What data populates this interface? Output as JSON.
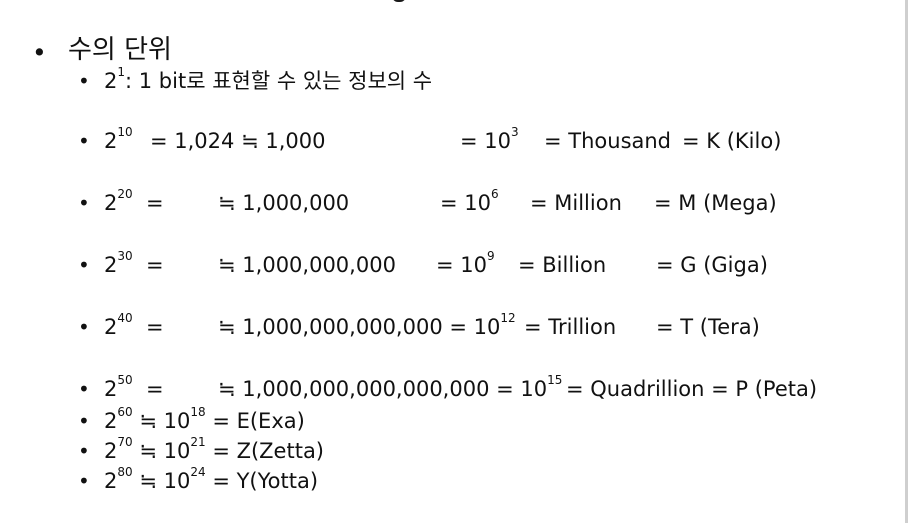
{
  "heading": {
    "bullet": "•",
    "text": "수의 단위"
  },
  "rows": [
    {
      "bullet": "•",
      "base": "2",
      "exp": "1",
      "rest": ": 1 bit로 표현할 수 있는 정보의 수"
    },
    {
      "bullet": "•",
      "base": "2",
      "exp": "10",
      "approx": "= 1,024 ≒ 1,000",
      "pow": "= 10",
      "pow_exp": "3",
      "word": "= Thousand",
      "unit": "= K (Kilo)"
    },
    {
      "bullet": "•",
      "base": "2",
      "exp": "20",
      "eq": "=",
      "approx": "≒ 1,000,000",
      "pow": "= 10",
      "pow_exp": "6",
      "word": "= Million",
      "unit": "= M (Mega)"
    },
    {
      "bullet": "•",
      "base": "2",
      "exp": "30",
      "eq": "=",
      "approx": "≒ 1,000,000,000",
      "pow": "= 10",
      "pow_exp": "9",
      "word": "= Billion",
      "unit": "= G (Giga)"
    },
    {
      "bullet": "•",
      "base": "2",
      "exp": "40",
      "eq": "=",
      "approx": "≒ 1,000,000,000,000 = 10",
      "pow_exp": "12",
      "word": "= Trillion",
      "unit": "= T (Tera)"
    },
    {
      "bullet": "•",
      "base": "2",
      "exp": "50",
      "eq": "=",
      "approx": "≒ 1,000,000,000,000,000 = 10",
      "pow_exp": "15",
      "word": "= Quadrillion = P (Peta)"
    },
    {
      "bullet": "•",
      "base": "2",
      "exp": "60",
      "mid": " ≒ 10",
      "mid_exp": "18",
      "tail": " = E(Exa)"
    },
    {
      "bullet": "•",
      "base": "2",
      "exp": "70",
      "mid": " ≒ 10",
      "mid_exp": "21",
      "tail": " = Z(Zetta)"
    },
    {
      "bullet": "•",
      "base": "2",
      "exp": "80",
      "mid": " ≒ 10",
      "mid_exp": "24",
      "tail": " = Y(Yotta)"
    }
  ]
}
